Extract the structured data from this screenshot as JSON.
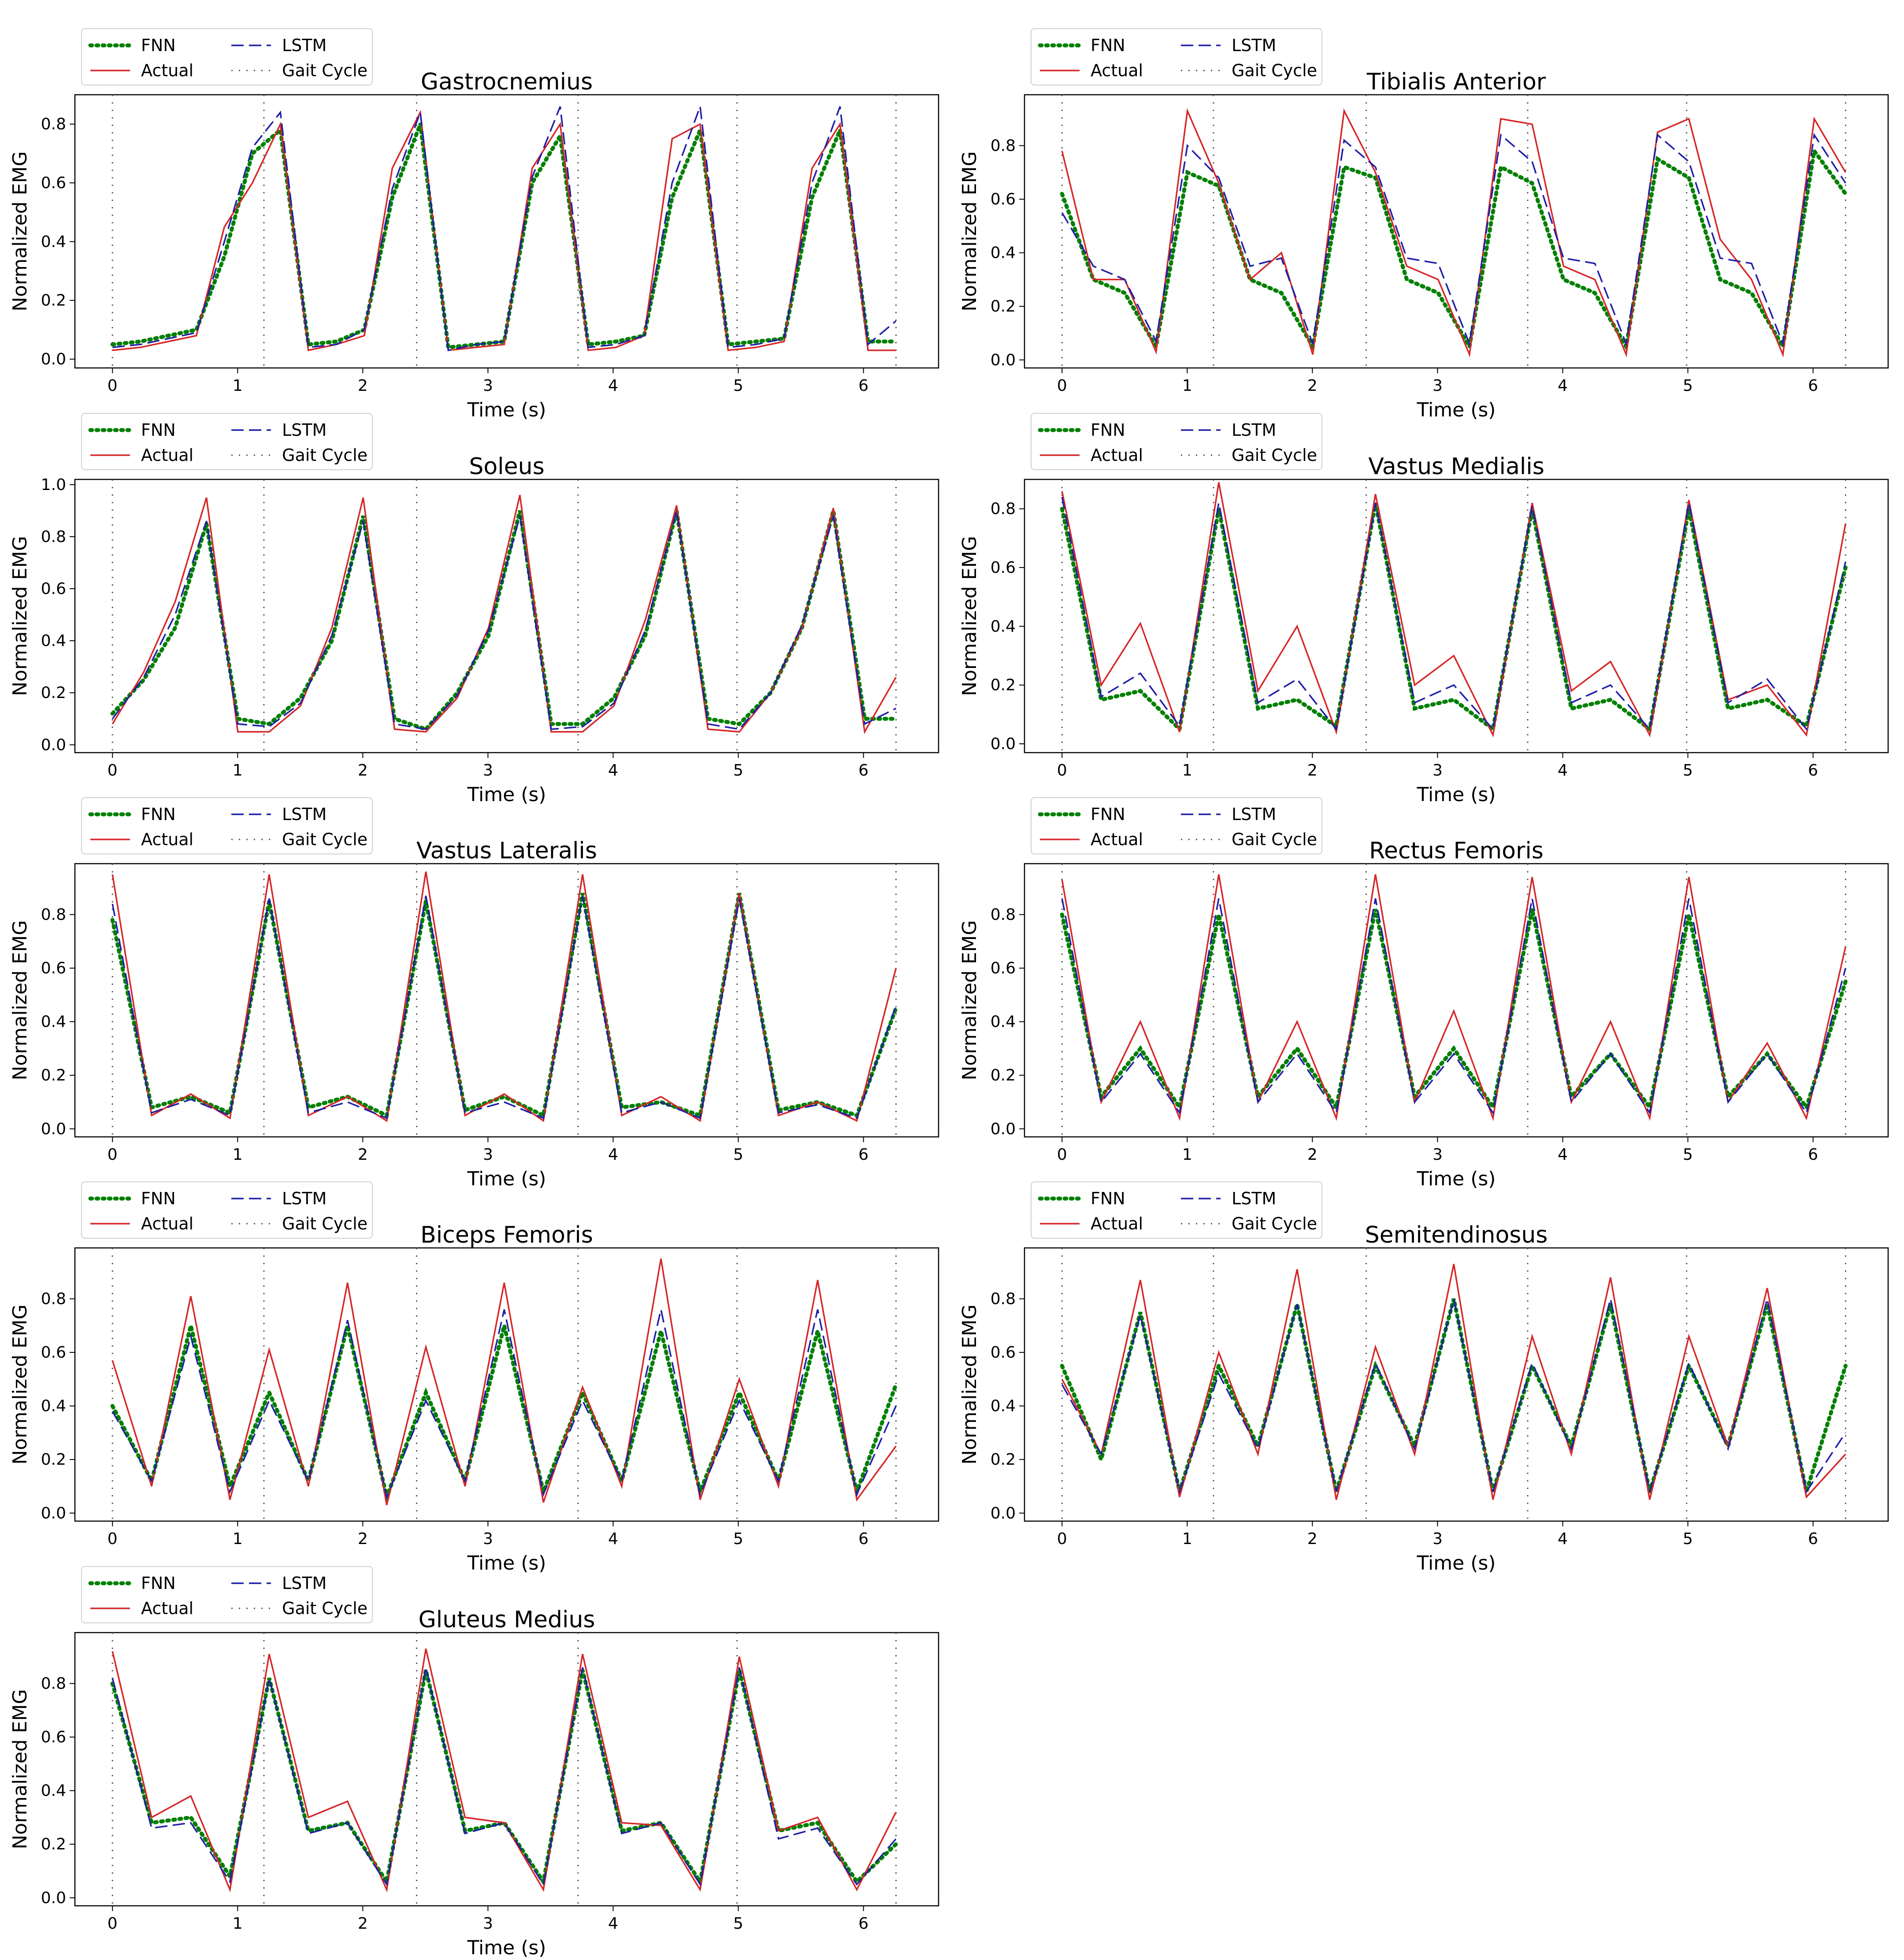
{
  "chart_data": [
    {
      "type": "line",
      "title": "Gastrocnemius",
      "xlabel": "Time (s)",
      "ylabel": "Normalized EMG",
      "xlim": [
        -0.3,
        6.6
      ],
      "ylim": [
        -0.03,
        0.9
      ],
      "xticks": [
        0,
        1,
        2,
        3,
        4,
        5,
        6
      ],
      "yticks": [
        0.0,
        0.2,
        0.4,
        0.6,
        0.8
      ],
      "gait_cycles": [
        0,
        1.21,
        2.43,
        3.72,
        4.99,
        6.26
      ],
      "peaks": {
        "actual": [
          0.8,
          0.84,
          0.8,
          0.8,
          0.8
        ],
        "fnn": [
          0.78,
          0.82,
          0.78,
          0.78,
          0.78
        ],
        "lstm": [
          0.84,
          0.84,
          0.86,
          0.86,
          0.86
        ]
      },
      "series": [
        {
          "name": "FNN",
          "values": [
            0.05,
            0.06,
            0.08,
            0.1,
            0.35,
            0.7,
            0.78,
            0.05,
            0.06,
            0.1,
            0.55,
            0.8,
            0.04,
            0.05,
            0.06,
            0.6,
            0.76,
            0.05,
            0.06,
            0.08,
            0.55,
            0.78,
            0.05,
            0.06,
            0.07,
            0.55,
            0.78,
            0.06,
            0.06
          ]
        },
        {
          "name": "Actual",
          "values": [
            0.03,
            0.04,
            0.06,
            0.08,
            0.45,
            0.6,
            0.8,
            0.03,
            0.05,
            0.08,
            0.65,
            0.84,
            0.03,
            0.04,
            0.05,
            0.65,
            0.8,
            0.03,
            0.04,
            0.08,
            0.75,
            0.8,
            0.03,
            0.04,
            0.06,
            0.65,
            0.8,
            0.03,
            0.03
          ]
        },
        {
          "name": "LSTM",
          "values": [
            0.04,
            0.05,
            0.07,
            0.09,
            0.4,
            0.72,
            0.84,
            0.04,
            0.05,
            0.1,
            0.58,
            0.84,
            0.03,
            0.05,
            0.06,
            0.62,
            0.86,
            0.04,
            0.05,
            0.08,
            0.6,
            0.86,
            0.04,
            0.05,
            0.07,
            0.6,
            0.86,
            0.05,
            0.13
          ]
        }
      ]
    },
    {
      "type": "line",
      "title": "Tibialis Anterior",
      "xlabel": "Time (s)",
      "ylabel": "Normalized EMG",
      "xlim": [
        -0.3,
        6.6
      ],
      "ylim": [
        -0.03,
        0.99
      ],
      "xticks": [
        0,
        1,
        2,
        3,
        4,
        5,
        6
      ],
      "yticks": [
        0.0,
        0.2,
        0.4,
        0.6,
        0.8
      ],
      "gait_cycles": [
        0,
        1.21,
        2.43,
        3.72,
        4.99,
        6.26
      ],
      "series": [
        {
          "name": "FNN",
          "values": [
            0.62,
            0.3,
            0.25,
            0.05,
            0.7,
            0.65,
            0.3,
            0.25,
            0.05,
            0.72,
            0.68,
            0.3,
            0.25,
            0.05,
            0.72,
            0.66,
            0.3,
            0.25,
            0.05,
            0.75,
            0.68,
            0.3,
            0.25,
            0.05,
            0.78,
            0.62
          ]
        },
        {
          "name": "Actual",
          "values": [
            0.78,
            0.3,
            0.3,
            0.03,
            0.93,
            0.66,
            0.3,
            0.4,
            0.02,
            0.93,
            0.7,
            0.35,
            0.3,
            0.02,
            0.9,
            0.88,
            0.35,
            0.3,
            0.02,
            0.85,
            0.9,
            0.45,
            0.3,
            0.02,
            0.9,
            0.7
          ]
        },
        {
          "name": "LSTM",
          "values": [
            0.55,
            0.35,
            0.3,
            0.07,
            0.8,
            0.68,
            0.35,
            0.38,
            0.06,
            0.82,
            0.72,
            0.38,
            0.36,
            0.06,
            0.84,
            0.74,
            0.38,
            0.36,
            0.06,
            0.84,
            0.74,
            0.38,
            0.36,
            0.06,
            0.84,
            0.66
          ]
        }
      ]
    },
    {
      "type": "line",
      "title": "Soleus",
      "xlabel": "Time (s)",
      "ylabel": "Normalized EMG",
      "xlim": [
        -0.3,
        6.6
      ],
      "ylim": [
        -0.03,
        1.02
      ],
      "xticks": [
        0,
        1,
        2,
        3,
        4,
        5,
        6
      ],
      "yticks": [
        0.0,
        0.2,
        0.4,
        0.6,
        0.8,
        1.0
      ],
      "gait_cycles": [
        0,
        1.21,
        2.43,
        3.72,
        4.99,
        6.26
      ],
      "series": [
        {
          "name": "FNN",
          "values": [
            0.12,
            0.25,
            0.45,
            0.85,
            0.1,
            0.08,
            0.18,
            0.4,
            0.88,
            0.1,
            0.06,
            0.2,
            0.42,
            0.9,
            0.08,
            0.08,
            0.18,
            0.42,
            0.9,
            0.1,
            0.08,
            0.2,
            0.45,
            0.9,
            0.1,
            0.1
          ]
        },
        {
          "name": "Actual",
          "values": [
            0.08,
            0.28,
            0.55,
            0.95,
            0.05,
            0.05,
            0.15,
            0.45,
            0.95,
            0.06,
            0.05,
            0.18,
            0.45,
            0.96,
            0.05,
            0.05,
            0.15,
            0.48,
            0.92,
            0.06,
            0.05,
            0.2,
            0.45,
            0.91,
            0.05,
            0.26
          ]
        },
        {
          "name": "LSTM",
          "values": [
            0.1,
            0.26,
            0.5,
            0.86,
            0.08,
            0.07,
            0.16,
            0.42,
            0.86,
            0.08,
            0.06,
            0.19,
            0.44,
            0.88,
            0.06,
            0.07,
            0.16,
            0.44,
            0.9,
            0.08,
            0.06,
            0.2,
            0.46,
            0.88,
            0.08,
            0.14
          ]
        }
      ]
    },
    {
      "type": "line",
      "title": "Vastus Medialis",
      "xlabel": "Time (s)",
      "ylabel": "Normalized EMG",
      "xlim": [
        -0.3,
        6.6
      ],
      "ylim": [
        -0.03,
        0.9
      ],
      "xticks": [
        0,
        1,
        2,
        3,
        4,
        5,
        6
      ],
      "yticks": [
        0.0,
        0.2,
        0.4,
        0.6,
        0.8
      ],
      "gait_cycles": [
        0,
        1.21,
        2.43,
        3.72,
        4.99,
        6.26
      ],
      "series": [
        {
          "name": "FNN",
          "values": [
            0.8,
            0.15,
            0.18,
            0.05,
            0.8,
            0.12,
            0.15,
            0.06,
            0.82,
            0.12,
            0.15,
            0.05,
            0.8,
            0.12,
            0.15,
            0.05,
            0.8,
            0.12,
            0.15,
            0.06,
            0.6
          ]
        },
        {
          "name": "Actual",
          "values": [
            0.86,
            0.2,
            0.41,
            0.04,
            0.89,
            0.18,
            0.4,
            0.04,
            0.85,
            0.2,
            0.3,
            0.03,
            0.82,
            0.18,
            0.28,
            0.03,
            0.83,
            0.15,
            0.2,
            0.03,
            0.75
          ]
        },
        {
          "name": "LSTM",
          "values": [
            0.84,
            0.16,
            0.24,
            0.06,
            0.82,
            0.14,
            0.22,
            0.05,
            0.82,
            0.14,
            0.2,
            0.05,
            0.81,
            0.14,
            0.2,
            0.05,
            0.82,
            0.14,
            0.22,
            0.05,
            0.62
          ]
        }
      ]
    },
    {
      "type": "line",
      "title": "Vastus Lateralis",
      "xlabel": "Time (s)",
      "ylabel": "Normalized EMG",
      "xlim": [
        -0.3,
        6.6
      ],
      "ylim": [
        -0.03,
        0.99
      ],
      "xticks": [
        0,
        1,
        2,
        3,
        4,
        5,
        6
      ],
      "yticks": [
        0.0,
        0.2,
        0.4,
        0.6,
        0.8
      ],
      "gait_cycles": [
        0,
        1.21,
        2.43,
        3.72,
        4.99,
        6.26
      ],
      "series": [
        {
          "name": "FNN",
          "values": [
            0.78,
            0.08,
            0.12,
            0.06,
            0.85,
            0.08,
            0.12,
            0.05,
            0.85,
            0.07,
            0.12,
            0.05,
            0.88,
            0.08,
            0.1,
            0.05,
            0.88,
            0.07,
            0.1,
            0.05,
            0.45
          ]
        },
        {
          "name": "Actual",
          "values": [
            0.95,
            0.05,
            0.13,
            0.04,
            0.95,
            0.05,
            0.12,
            0.03,
            0.96,
            0.05,
            0.13,
            0.03,
            0.95,
            0.05,
            0.12,
            0.03,
            0.88,
            0.05,
            0.1,
            0.03,
            0.6
          ]
        },
        {
          "name": "LSTM",
          "values": [
            0.84,
            0.06,
            0.11,
            0.05,
            0.86,
            0.06,
            0.1,
            0.04,
            0.87,
            0.06,
            0.1,
            0.04,
            0.87,
            0.06,
            0.1,
            0.04,
            0.86,
            0.06,
            0.09,
            0.04,
            0.46
          ]
        }
      ]
    },
    {
      "type": "line",
      "title": "Rectus Femoris",
      "xlabel": "Time (s)",
      "ylabel": "Normalized EMG",
      "xlim": [
        -0.3,
        6.6
      ],
      "ylim": [
        -0.03,
        0.99
      ],
      "xticks": [
        0,
        1,
        2,
        3,
        4,
        5,
        6
      ],
      "yticks": [
        0.0,
        0.2,
        0.4,
        0.6,
        0.8
      ],
      "gait_cycles": [
        0,
        1.21,
        2.43,
        3.72,
        4.99,
        6.26
      ],
      "series": [
        {
          "name": "FNN",
          "values": [
            0.8,
            0.12,
            0.3,
            0.08,
            0.8,
            0.12,
            0.3,
            0.08,
            0.82,
            0.12,
            0.3,
            0.08,
            0.82,
            0.12,
            0.28,
            0.08,
            0.8,
            0.12,
            0.28,
            0.08,
            0.55
          ]
        },
        {
          "name": "Actual",
          "values": [
            0.93,
            0.1,
            0.4,
            0.04,
            0.95,
            0.1,
            0.4,
            0.04,
            0.95,
            0.1,
            0.44,
            0.04,
            0.94,
            0.1,
            0.4,
            0.04,
            0.94,
            0.1,
            0.32,
            0.04,
            0.68
          ]
        },
        {
          "name": "LSTM",
          "values": [
            0.86,
            0.1,
            0.28,
            0.06,
            0.86,
            0.1,
            0.28,
            0.06,
            0.86,
            0.1,
            0.28,
            0.06,
            0.86,
            0.1,
            0.28,
            0.06,
            0.86,
            0.1,
            0.28,
            0.06,
            0.6
          ]
        }
      ]
    },
    {
      "type": "line",
      "title": "Biceps Femoris",
      "xlabel": "Time (s)",
      "ylabel": "Normalized EMG",
      "xlim": [
        -0.3,
        6.6
      ],
      "ylim": [
        -0.03,
        0.99
      ],
      "xticks": [
        0,
        1,
        2,
        3,
        4,
        5,
        6
      ],
      "yticks": [
        0.0,
        0.2,
        0.4,
        0.6,
        0.8
      ],
      "gait_cycles": [
        0,
        1.21,
        2.43,
        3.72,
        4.99,
        6.26
      ],
      "series": [
        {
          "name": "FNN",
          "values": [
            0.4,
            0.12,
            0.7,
            0.1,
            0.45,
            0.12,
            0.7,
            0.06,
            0.45,
            0.12,
            0.7,
            0.08,
            0.45,
            0.12,
            0.68,
            0.08,
            0.45,
            0.12,
            0.68,
            0.08,
            0.48
          ]
        },
        {
          "name": "Actual",
          "values": [
            0.57,
            0.1,
            0.81,
            0.05,
            0.61,
            0.1,
            0.86,
            0.03,
            0.62,
            0.1,
            0.86,
            0.04,
            0.47,
            0.1,
            0.95,
            0.05,
            0.5,
            0.1,
            0.87,
            0.05,
            0.25
          ]
        },
        {
          "name": "LSTM",
          "values": [
            0.38,
            0.12,
            0.66,
            0.08,
            0.42,
            0.12,
            0.72,
            0.06,
            0.42,
            0.12,
            0.76,
            0.07,
            0.42,
            0.12,
            0.76,
            0.07,
            0.42,
            0.12,
            0.76,
            0.07,
            0.4
          ]
        }
      ]
    },
    {
      "type": "line",
      "title": "Semitendinosus",
      "xlabel": "Time (s)",
      "ylabel": "Normalized EMG",
      "xlim": [
        -0.3,
        6.6
      ],
      "ylim": [
        -0.03,
        0.99
      ],
      "xticks": [
        0,
        1,
        2,
        3,
        4,
        5,
        6
      ],
      "yticks": [
        0.0,
        0.2,
        0.4,
        0.6,
        0.8
      ],
      "gait_cycles": [
        0,
        1.21,
        2.43,
        3.72,
        4.99,
        6.26
      ],
      "series": [
        {
          "name": "FNN",
          "values": [
            0.55,
            0.2,
            0.75,
            0.08,
            0.55,
            0.25,
            0.78,
            0.08,
            0.55,
            0.25,
            0.8,
            0.08,
            0.55,
            0.25,
            0.78,
            0.08,
            0.55,
            0.25,
            0.78,
            0.08,
            0.55
          ]
        },
        {
          "name": "Actual",
          "values": [
            0.5,
            0.22,
            0.87,
            0.06,
            0.6,
            0.22,
            0.91,
            0.05,
            0.62,
            0.22,
            0.93,
            0.05,
            0.66,
            0.22,
            0.88,
            0.05,
            0.66,
            0.25,
            0.84,
            0.06,
            0.22
          ]
        },
        {
          "name": "LSTM",
          "values": [
            0.48,
            0.22,
            0.74,
            0.08,
            0.52,
            0.24,
            0.78,
            0.08,
            0.56,
            0.24,
            0.8,
            0.08,
            0.56,
            0.24,
            0.8,
            0.08,
            0.56,
            0.24,
            0.8,
            0.08,
            0.3
          ]
        }
      ]
    },
    {
      "type": "line",
      "title": "Gluteus Medius",
      "xlabel": "Time (s)",
      "ylabel": "Normalized EMG",
      "xlim": [
        -0.3,
        6.6
      ],
      "ylim": [
        -0.03,
        0.99
      ],
      "xticks": [
        0,
        1,
        2,
        3,
        4,
        5,
        6
      ],
      "yticks": [
        0.0,
        0.2,
        0.4,
        0.6,
        0.8
      ],
      "gait_cycles": [
        0,
        1.21,
        2.43,
        3.72,
        4.99,
        6.26
      ],
      "series": [
        {
          "name": "FNN",
          "values": [
            0.8,
            0.28,
            0.3,
            0.08,
            0.82,
            0.25,
            0.28,
            0.06,
            0.85,
            0.25,
            0.28,
            0.06,
            0.85,
            0.25,
            0.28,
            0.06,
            0.85,
            0.25,
            0.28,
            0.06,
            0.2
          ]
        },
        {
          "name": "Actual",
          "values": [
            0.92,
            0.3,
            0.38,
            0.03,
            0.91,
            0.3,
            0.36,
            0.03,
            0.93,
            0.3,
            0.28,
            0.03,
            0.91,
            0.28,
            0.27,
            0.03,
            0.9,
            0.25,
            0.3,
            0.03,
            0.32
          ]
        },
        {
          "name": "LSTM",
          "values": [
            0.82,
            0.26,
            0.28,
            0.06,
            0.82,
            0.24,
            0.28,
            0.05,
            0.86,
            0.24,
            0.28,
            0.05,
            0.86,
            0.24,
            0.28,
            0.05,
            0.86,
            0.22,
            0.26,
            0.05,
            0.22
          ]
        }
      ]
    }
  ],
  "legend": {
    "fnn": "FNN",
    "lstm": "LSTM",
    "actual": "Actual",
    "gait": "Gait Cycle"
  },
  "colors": {
    "fnn": "#008000",
    "actual": "#d62728",
    "lstm": "#1f1fa8",
    "gait": "#555555"
  }
}
